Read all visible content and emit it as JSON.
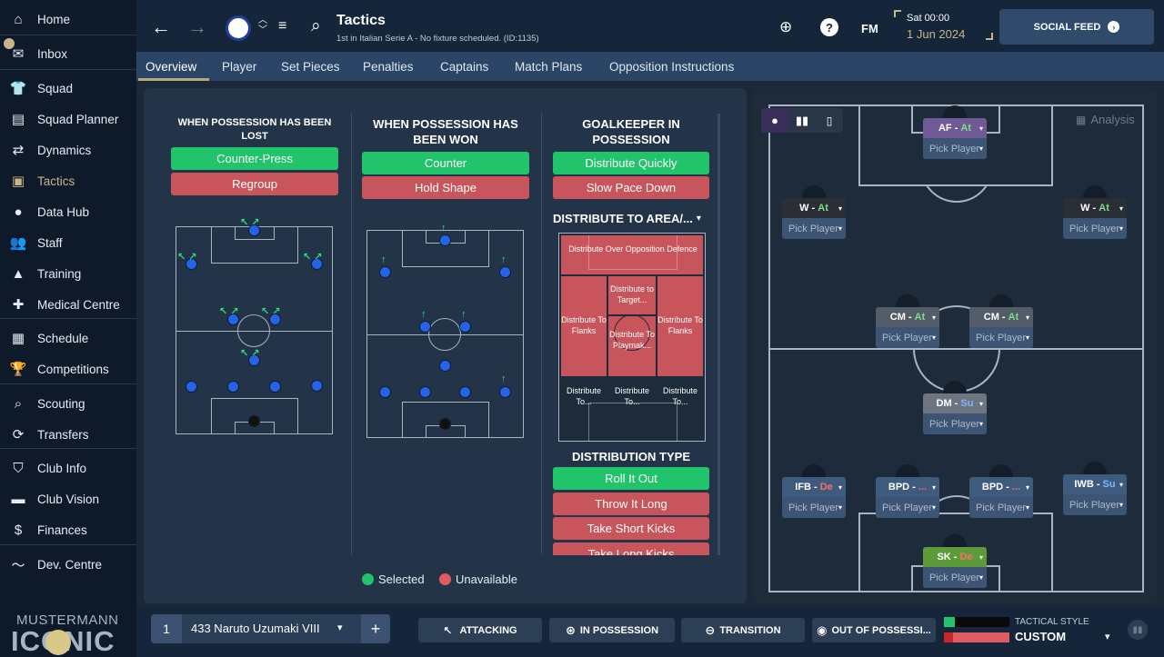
{
  "sidebar": {
    "items": [
      {
        "label": "Home",
        "icon": "home-icon",
        "glyph": "⌂"
      },
      {
        "label": "Inbox",
        "icon": "inbox-icon",
        "glyph": "✉"
      },
      {
        "label": "Squad",
        "icon": "shirt-icon",
        "glyph": "👕"
      },
      {
        "label": "Squad Planner",
        "icon": "clipboard-icon",
        "glyph": "▤"
      },
      {
        "label": "Dynamics",
        "icon": "dynamics-icon",
        "glyph": "⇄"
      },
      {
        "label": "Tactics",
        "icon": "tactics-board-icon",
        "glyph": "▣"
      },
      {
        "label": "Data Hub",
        "icon": "data-hub-icon",
        "glyph": "●"
      },
      {
        "label": "Staff",
        "icon": "staff-icon",
        "glyph": "👥"
      },
      {
        "label": "Training",
        "icon": "training-cone-icon",
        "glyph": "▲"
      },
      {
        "label": "Medical Centre",
        "icon": "medical-icon",
        "glyph": "✚"
      },
      {
        "label": "Schedule",
        "icon": "calendar-icon",
        "glyph": "▦"
      },
      {
        "label": "Competitions",
        "icon": "trophy-icon",
        "glyph": "🏆"
      },
      {
        "label": "Scouting",
        "icon": "search-icon",
        "glyph": "⌕"
      },
      {
        "label": "Transfers",
        "icon": "transfers-icon",
        "glyph": "⟳"
      },
      {
        "label": "Club Info",
        "icon": "shield-icon",
        "glyph": "⛉"
      },
      {
        "label": "Club Vision",
        "icon": "briefcase-icon",
        "glyph": "▬"
      },
      {
        "label": "Finances",
        "icon": "money-icon",
        "glyph": "$"
      },
      {
        "label": "Dev. Centre",
        "icon": "trend-icon",
        "glyph": "〜"
      }
    ],
    "brand": {
      "line1": "MUSTERMANN",
      "line2": "ICONIC"
    }
  },
  "topbar": {
    "title": "Tactics",
    "subtitle": "1st in Italian Serie A - No fixture scheduled. (ID:1135)",
    "day_time": "Sat 00:00",
    "date": "1 Jun 2024",
    "fm_label": "FM",
    "social_feed": "SOCIAL FEED"
  },
  "tabs": [
    "Overview",
    "Player",
    "Set Pieces",
    "Penalties",
    "Captains",
    "Match Plans",
    "Opposition Instructions"
  ],
  "transitions": {
    "lost": {
      "title": "WHEN POSSESSION HAS BEEN LOST",
      "options": [
        "Counter-Press",
        "Regroup"
      ]
    },
    "won": {
      "title": "WHEN POSSESSION HAS BEEN WON",
      "options": [
        "Counter",
        "Hold Shape"
      ]
    },
    "gk": {
      "title": "GOALKEEPER IN POSSESSION",
      "options": [
        "Distribute Quickly",
        "Slow Pace Down"
      ],
      "distribute_area": "DISTRIBUTE TO AREA/...",
      "areas": {
        "defence": "Distribute Over Opposition Defence",
        "target": "Distribute to Target...",
        "flanks_left": "Distribute To Flanks",
        "flanks_right": "Distribute To Flanks",
        "playmaker": "Distribute To Playmak...",
        "bl": "Distribute To...",
        "bc": "Distribute To...",
        "br": "Distribute To..."
      },
      "distribution_type_title": "DISTRIBUTION TYPE",
      "distribution_types": [
        "Roll It Out",
        "Throw It Long",
        "Take Short Kicks",
        "Take Long Kicks"
      ]
    },
    "legend": {
      "selected": "Selected",
      "unavailable": "Unavailable"
    }
  },
  "analysis_label": "Analysis",
  "positions": {
    "af": {
      "role": "AF",
      "duty": "At",
      "pick": "Pick Player"
    },
    "wl": {
      "role": "W",
      "duty": "At",
      "pick": "Pick Player"
    },
    "wr": {
      "role": "W",
      "duty": "At",
      "pick": "Pick Player"
    },
    "cml": {
      "role": "CM",
      "duty": "At",
      "pick": "Pick Player"
    },
    "cmr": {
      "role": "CM",
      "duty": "At",
      "pick": "Pick Player"
    },
    "dm": {
      "role": "DM",
      "duty": "Su",
      "pick": "Pick Player"
    },
    "ifb": {
      "role": "IFB",
      "duty": "De",
      "pick": "Pick Player"
    },
    "bpdl": {
      "role": "BPD",
      "duty": "...",
      "pick": "Pick Player"
    },
    "bpdr": {
      "role": "BPD",
      "duty": "...",
      "pick": "Pick Player"
    },
    "iwb": {
      "role": "IWB",
      "duty": "Su",
      "pick": "Pick Player"
    },
    "sk": {
      "role": "SK",
      "duty": "De",
      "pick": "Pick Player"
    }
  },
  "bottombar": {
    "slot": "1",
    "tactic_name": "433 Naruto Uzumaki VIII",
    "add": "+",
    "phases": [
      "ATTACKING",
      "IN POSSESSION",
      "TRANSITION",
      "OUT OF POSSESSI..."
    ],
    "style_label": "TACTICAL STYLE",
    "style_value": "CUSTOM"
  },
  "colors": {
    "selected": "#21c46a",
    "unavailable": "#c9555c",
    "accent": "#b8a57b"
  }
}
